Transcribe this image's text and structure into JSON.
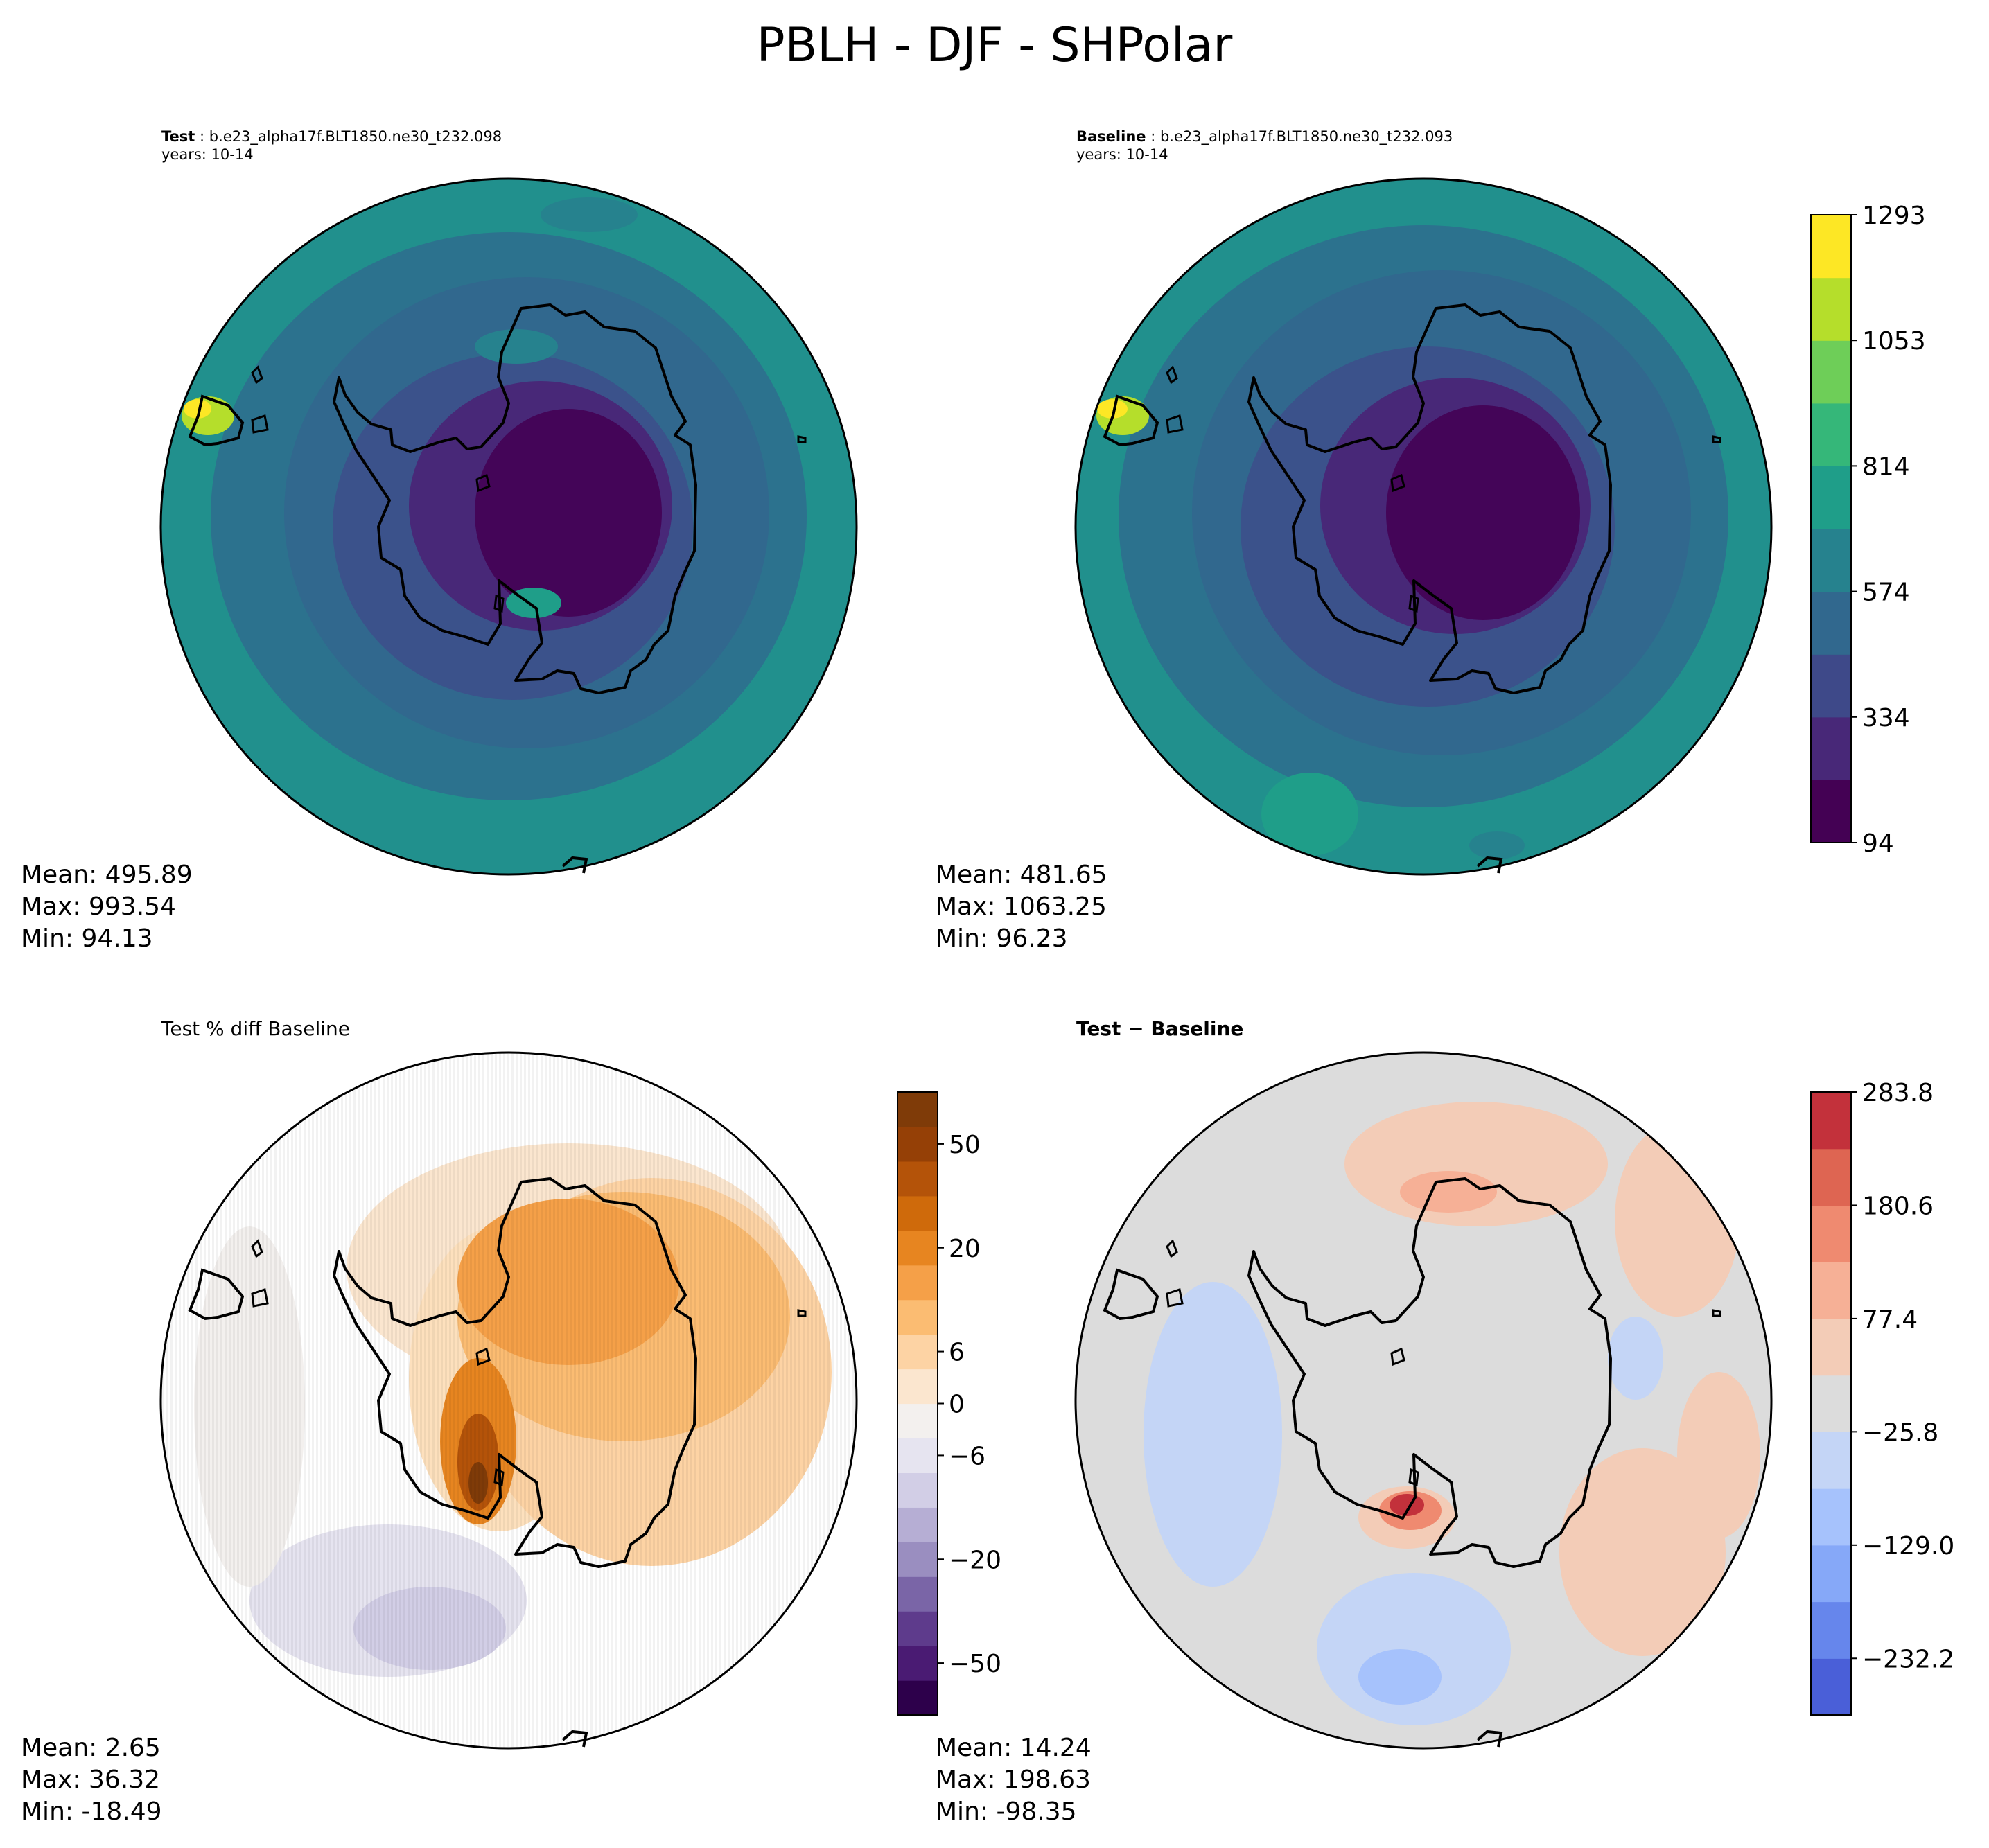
{
  "suptitle": "PBLH - DJF - SHPolar",
  "panels": {
    "test": {
      "label": "Test",
      "case": "b.e23_alpha17f.BLT1850.ne30_t232.098",
      "years": "years: 10-14",
      "stats": {
        "mean": "Mean: 495.89",
        "max": "Max: 993.54",
        "min": "Min: 94.13"
      }
    },
    "baseline": {
      "label": "Baseline",
      "case": "b.e23_alpha17f.BLT1850.ne30_t232.093",
      "years": "years: 10-14",
      "stats": {
        "mean": "Mean: 481.65",
        "max": "Max: 1063.25",
        "min": "Min: 96.23"
      }
    },
    "pctdiff": {
      "title": "Test % diff Baseline",
      "stats": {
        "mean": "Mean:  2.65",
        "max": "Max: 36.32",
        "min": "Min: -18.49"
      }
    },
    "diff": {
      "title": "Test − Baseline",
      "stats": {
        "mean": "Mean: 14.24",
        "max": "Max: 198.63",
        "min": "Min: -98.35"
      }
    }
  },
  "colorbars": {
    "viridis": {
      "colors": [
        "#440154",
        "#482878",
        "#3e4989",
        "#31688e",
        "#26828e",
        "#1f9e89",
        "#35b779",
        "#6ece58",
        "#b5de2b",
        "#fde725"
      ],
      "tick_labels": [
        "94",
        "334",
        "574",
        "814",
        "1053",
        "1293"
      ]
    },
    "puor": {
      "colors": [
        "#2d004b",
        "#4a1b73",
        "#5e3b8c",
        "#7a65a7",
        "#9a8ec0",
        "#b6aed4",
        "#d2cee6",
        "#e6e4f0",
        "#f3f0ee",
        "#fbe6cf",
        "#fdd3a4",
        "#fbbc72",
        "#f5a048",
        "#e78520",
        "#cf6a0b",
        "#b45309",
        "#954006",
        "#7f3b08"
      ],
      "tick_labels": [
        "−50",
        "−20",
        "−6",
        "0",
        "6",
        "20",
        "50"
      ]
    },
    "coolwarm": {
      "colors": [
        "#4a5fd8",
        "#6686ec",
        "#86a8f8",
        "#a6c2fc",
        "#c4d5f6",
        "#dcdcdc",
        "#f3ccb7",
        "#f6b096",
        "#ef8a70",
        "#de6552",
        "#c3313b"
      ],
      "tick_labels": [
        "−232.2",
        "−129.0",
        "−25.8",
        "77.4",
        "180.6",
        "283.8"
      ]
    }
  }
}
